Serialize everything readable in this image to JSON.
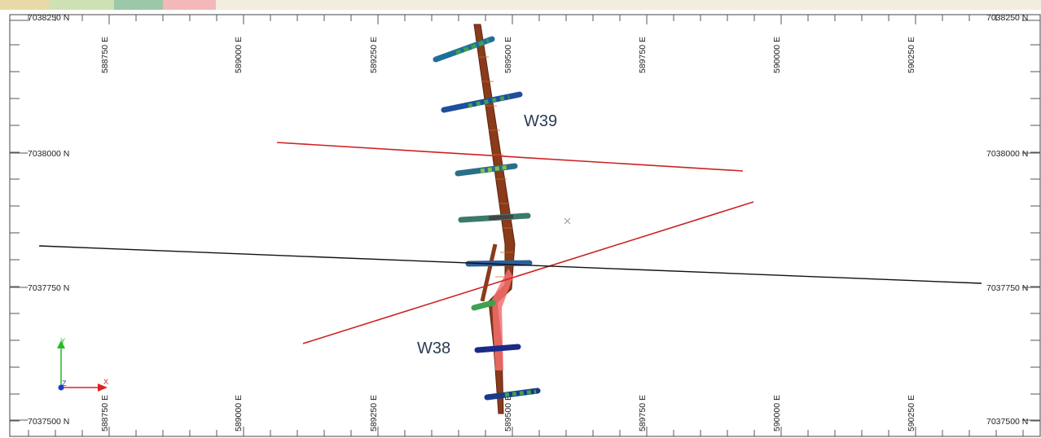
{
  "map": {
    "easting_labels": [
      "588750 E",
      "589000 E",
      "589250 E",
      "589500 E",
      "589750 E",
      "590000 E",
      "590250 E"
    ],
    "northing_labels": [
      "7038250 N",
      "7038000 N",
      "7037750 N",
      "7037500 N"
    ],
    "wells": [
      {
        "name": "W39"
      },
      {
        "name": "W38"
      }
    ],
    "colors": {
      "section_line_red": "#cc2222",
      "section_line_black": "#111111",
      "trench": "#8a3b1a",
      "trench_highlight": "#f26f6f",
      "frame": "#444444"
    },
    "axes_triad": {
      "y_label": "Y",
      "x_label": "X",
      "z_label": "Z"
    },
    "icons": [
      "axes-triad-icon",
      "cursor-cross-icon"
    ]
  }
}
